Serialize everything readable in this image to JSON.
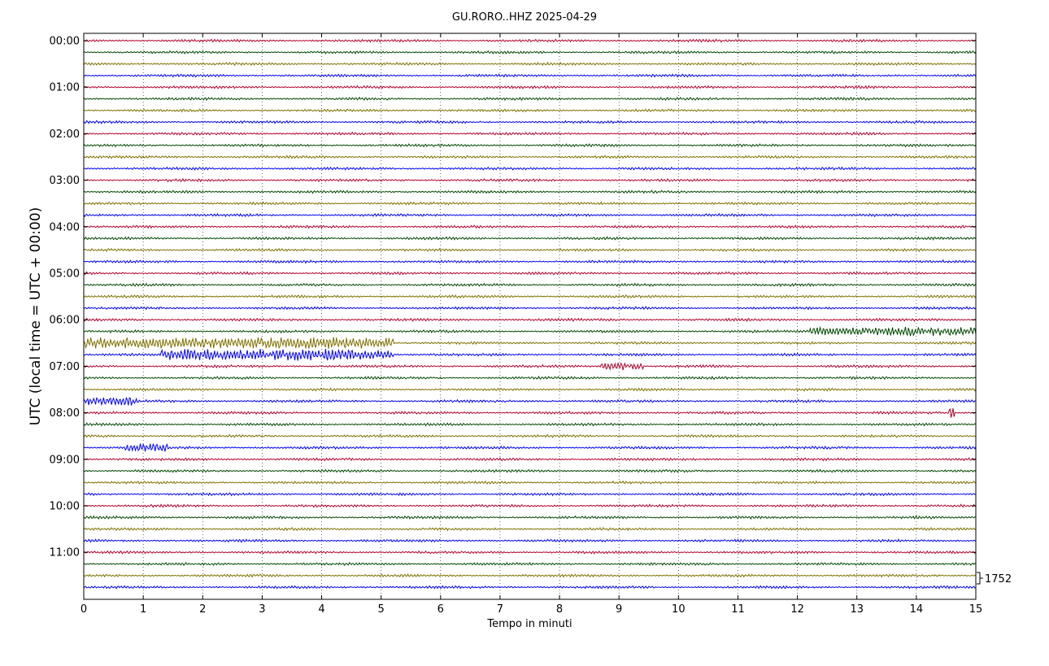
{
  "chart_data": {
    "type": "line",
    "title": "GU.RORO..HHZ 2025-04-29",
    "xlabel": "Tempo in minuti",
    "ylabel": "UTC (local time = UTC + 00:00)",
    "xlim": [
      0,
      15
    ],
    "x_ticks": [
      "0",
      "1",
      "2",
      "3",
      "4",
      "5",
      "6",
      "7",
      "8",
      "9",
      "10",
      "11",
      "12",
      "13",
      "14",
      "15"
    ],
    "y_ticks": [
      "00:00",
      "01:00",
      "02:00",
      "03:00",
      "04:00",
      "05:00",
      "06:00",
      "07:00",
      "08:00",
      "09:00",
      "10:00",
      "11:00"
    ],
    "scale_label": "1752",
    "grid": "vertical dotted",
    "trace_interval_minutes": 15,
    "trace_count": 48,
    "trace_colors": [
      "#b2002b",
      "#004800",
      "#7f7000",
      "#0000ff"
    ],
    "notable_events": [
      {
        "row_start": "06:30",
        "minutes": [
          0,
          5.2
        ],
        "amplitude": "high"
      },
      {
        "row_start": "06:45",
        "minutes": [
          1.3,
          5.2
        ],
        "amplitude": "high"
      },
      {
        "row_start": "06:15",
        "minutes": [
          12.2,
          15
        ],
        "amplitude": "medium"
      },
      {
        "row_start": "07:45",
        "minutes": [
          0,
          0.9
        ],
        "amplitude": "medium"
      },
      {
        "row_start": "08:45",
        "minutes": [
          0.7,
          1.4
        ],
        "amplitude": "medium"
      },
      {
        "row_start": "07:00",
        "minutes": [
          8.7,
          9.4
        ],
        "amplitude": "medium"
      },
      {
        "row_start": "08:00",
        "minutes": [
          14.6,
          14.6
        ],
        "amplitude": "spike"
      }
    ]
  }
}
